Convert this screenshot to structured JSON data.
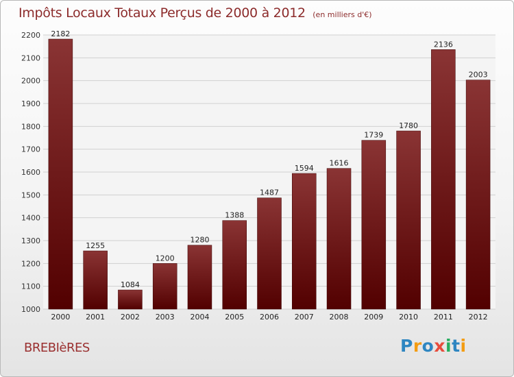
{
  "header": {
    "title": "Impôts Locaux Totaux Perçus de 2000 à 2012",
    "subtitle": "(en milliers d'€)"
  },
  "commune": "BREBIèRES",
  "logo": {
    "letters": [
      "P",
      "r",
      "o",
      "x",
      "i",
      "t",
      "i"
    ],
    "colors": [
      "#2e86c1",
      "#f39c12",
      "#2e86c1",
      "#e74c3c",
      "#27ae60",
      "#2e86c1",
      "#f39c12"
    ]
  },
  "colors": {
    "bar_top": "#8a3434",
    "bar_bottom": "#520000",
    "title": "#8c2b2b",
    "grid": "#d0d0d0"
  },
  "chart_data": {
    "type": "bar",
    "categories": [
      "2000",
      "2001",
      "2002",
      "2003",
      "2004",
      "2005",
      "2006",
      "2007",
      "2008",
      "2009",
      "2010",
      "2011",
      "2012"
    ],
    "values": [
      2182,
      1255,
      1084,
      1200,
      1280,
      1388,
      1487,
      1594,
      1616,
      1739,
      1780,
      2136,
      2003
    ],
    "ylim": [
      1000,
      2200
    ],
    "yticks": [
      1000,
      1100,
      1200,
      1300,
      1400,
      1500,
      1600,
      1700,
      1800,
      1900,
      2000,
      2100,
      2200
    ],
    "grid": true,
    "data_labels": true
  }
}
